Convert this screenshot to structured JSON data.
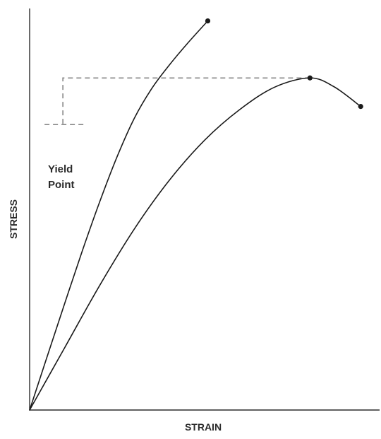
{
  "chart_data": {
    "type": "line",
    "title": "",
    "xlabel": "STRAIN",
    "ylabel": "STRESS",
    "xlim": [
      0,
      100
    ],
    "ylim": [
      0,
      100
    ],
    "grid": false,
    "ticks": "none",
    "series": [
      {
        "color": "#1a1a1a",
        "x": [
          0,
          5,
          10,
          15,
          20,
          25,
          30,
          35,
          40,
          45,
          50.9
        ],
        "y": [
          0,
          13.3,
          26.5,
          39.5,
          51.8,
          63.1,
          72.8,
          80.2,
          86.0,
          91.2,
          96.9
        ],
        "endpoint_marker": "dot"
      },
      {
        "color": "#1a1a1a",
        "x": [
          0,
          10,
          20,
          30,
          40,
          50,
          60,
          70,
          80.1,
          87,
          94.6
        ],
        "y": [
          0,
          15.5,
          31.0,
          45.2,
          57.3,
          67.2,
          74.8,
          80.4,
          82.7,
          80.5,
          75.6
        ],
        "peak_marker": "dot",
        "endpoint_marker": "dot"
      }
    ],
    "annotations": [
      {
        "text_lines": [
          "Yield",
          "Point"
        ],
        "style": "dashed",
        "color": "#888888",
        "level_y": 82.7,
        "from_x": 9.5,
        "to_x": 80.1,
        "down_to_y": 71.1
      }
    ]
  }
}
